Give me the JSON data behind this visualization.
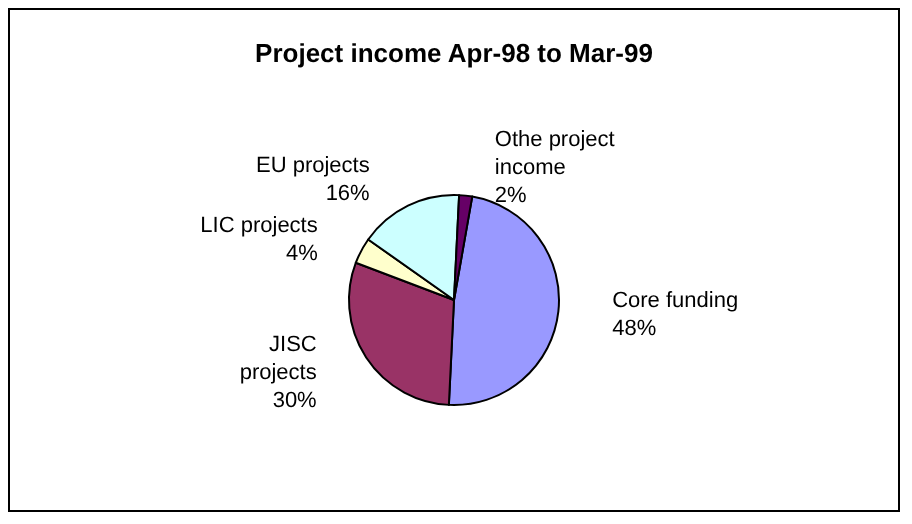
{
  "chart_data": {
    "type": "pie",
    "title": "Project income Apr-98 to Mar-99",
    "categories": [
      "Core funding",
      "JISC projects",
      "LIC projects",
      "EU projects",
      "Othe project income"
    ],
    "values": [
      48,
      30,
      4,
      16,
      2
    ],
    "value_labels": [
      "48%",
      "30%",
      "4%",
      "16%",
      "2%"
    ],
    "colors": [
      "#9999ff",
      "#993366",
      "#ffffcc",
      "#ccffff",
      "#660066"
    ],
    "legend": false
  }
}
